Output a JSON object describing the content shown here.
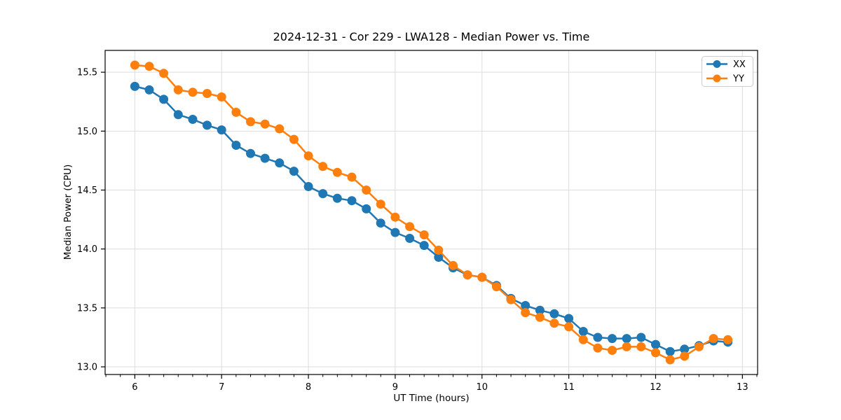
{
  "chart_data": {
    "type": "line",
    "title": "2024-12-31 - Cor 229 - LWA128 - Median Power vs. Time",
    "xlabel": "UT Time (hours)",
    "ylabel": "Median Power (CPU)",
    "xlim": [
      5.658,
      13.175
    ],
    "ylim": [
      12.935,
      15.685
    ],
    "xticks": [
      6,
      7,
      8,
      9,
      10,
      11,
      12,
      13
    ],
    "yticks": [
      13.0,
      13.5,
      14.0,
      14.5,
      15.0,
      15.5
    ],
    "minor_xtick_step_hours": 0.1667,
    "grid": true,
    "grid_color": "#dcdcdc",
    "axis_color": "#000000",
    "legend": {
      "position": "upper right",
      "entries": [
        "XX",
        "YY"
      ]
    },
    "x": [
      6.0,
      6.167,
      6.333,
      6.5,
      6.667,
      6.833,
      7.0,
      7.167,
      7.333,
      7.5,
      7.667,
      7.833,
      8.0,
      8.167,
      8.333,
      8.5,
      8.667,
      8.833,
      9.0,
      9.167,
      9.333,
      9.5,
      9.667,
      9.833,
      10.0,
      10.167,
      10.333,
      10.5,
      10.667,
      10.833,
      11.0,
      11.167,
      11.333,
      11.5,
      11.667,
      11.833,
      12.0,
      12.167,
      12.333,
      12.5,
      12.667,
      12.833
    ],
    "series": [
      {
        "name": "XX",
        "color": "#1f77b4",
        "marker": "circle",
        "values": [
          15.38,
          15.35,
          15.27,
          15.14,
          15.1,
          15.05,
          15.01,
          14.88,
          14.81,
          14.77,
          14.73,
          14.66,
          14.53,
          14.47,
          14.43,
          14.41,
          14.34,
          14.22,
          14.14,
          14.09,
          14.03,
          13.93,
          13.84,
          13.78,
          13.76,
          13.69,
          13.58,
          13.52,
          13.48,
          13.45,
          13.41,
          13.3,
          13.25,
          13.24,
          13.24,
          13.25,
          13.19,
          13.13,
          13.15,
          13.18,
          13.22,
          13.21
        ]
      },
      {
        "name": "YY",
        "color": "#ff7f0e",
        "marker": "circle",
        "values": [
          15.56,
          15.55,
          15.49,
          15.35,
          15.33,
          15.32,
          15.29,
          15.16,
          15.08,
          15.06,
          15.02,
          14.93,
          14.79,
          14.7,
          14.65,
          14.61,
          14.5,
          14.38,
          14.27,
          14.19,
          14.12,
          13.99,
          13.86,
          13.78,
          13.76,
          13.68,
          13.57,
          13.46,
          13.42,
          13.37,
          13.34,
          13.23,
          13.16,
          13.14,
          13.17,
          13.17,
          13.12,
          13.06,
          13.09,
          13.17,
          13.24,
          13.23
        ]
      }
    ]
  }
}
